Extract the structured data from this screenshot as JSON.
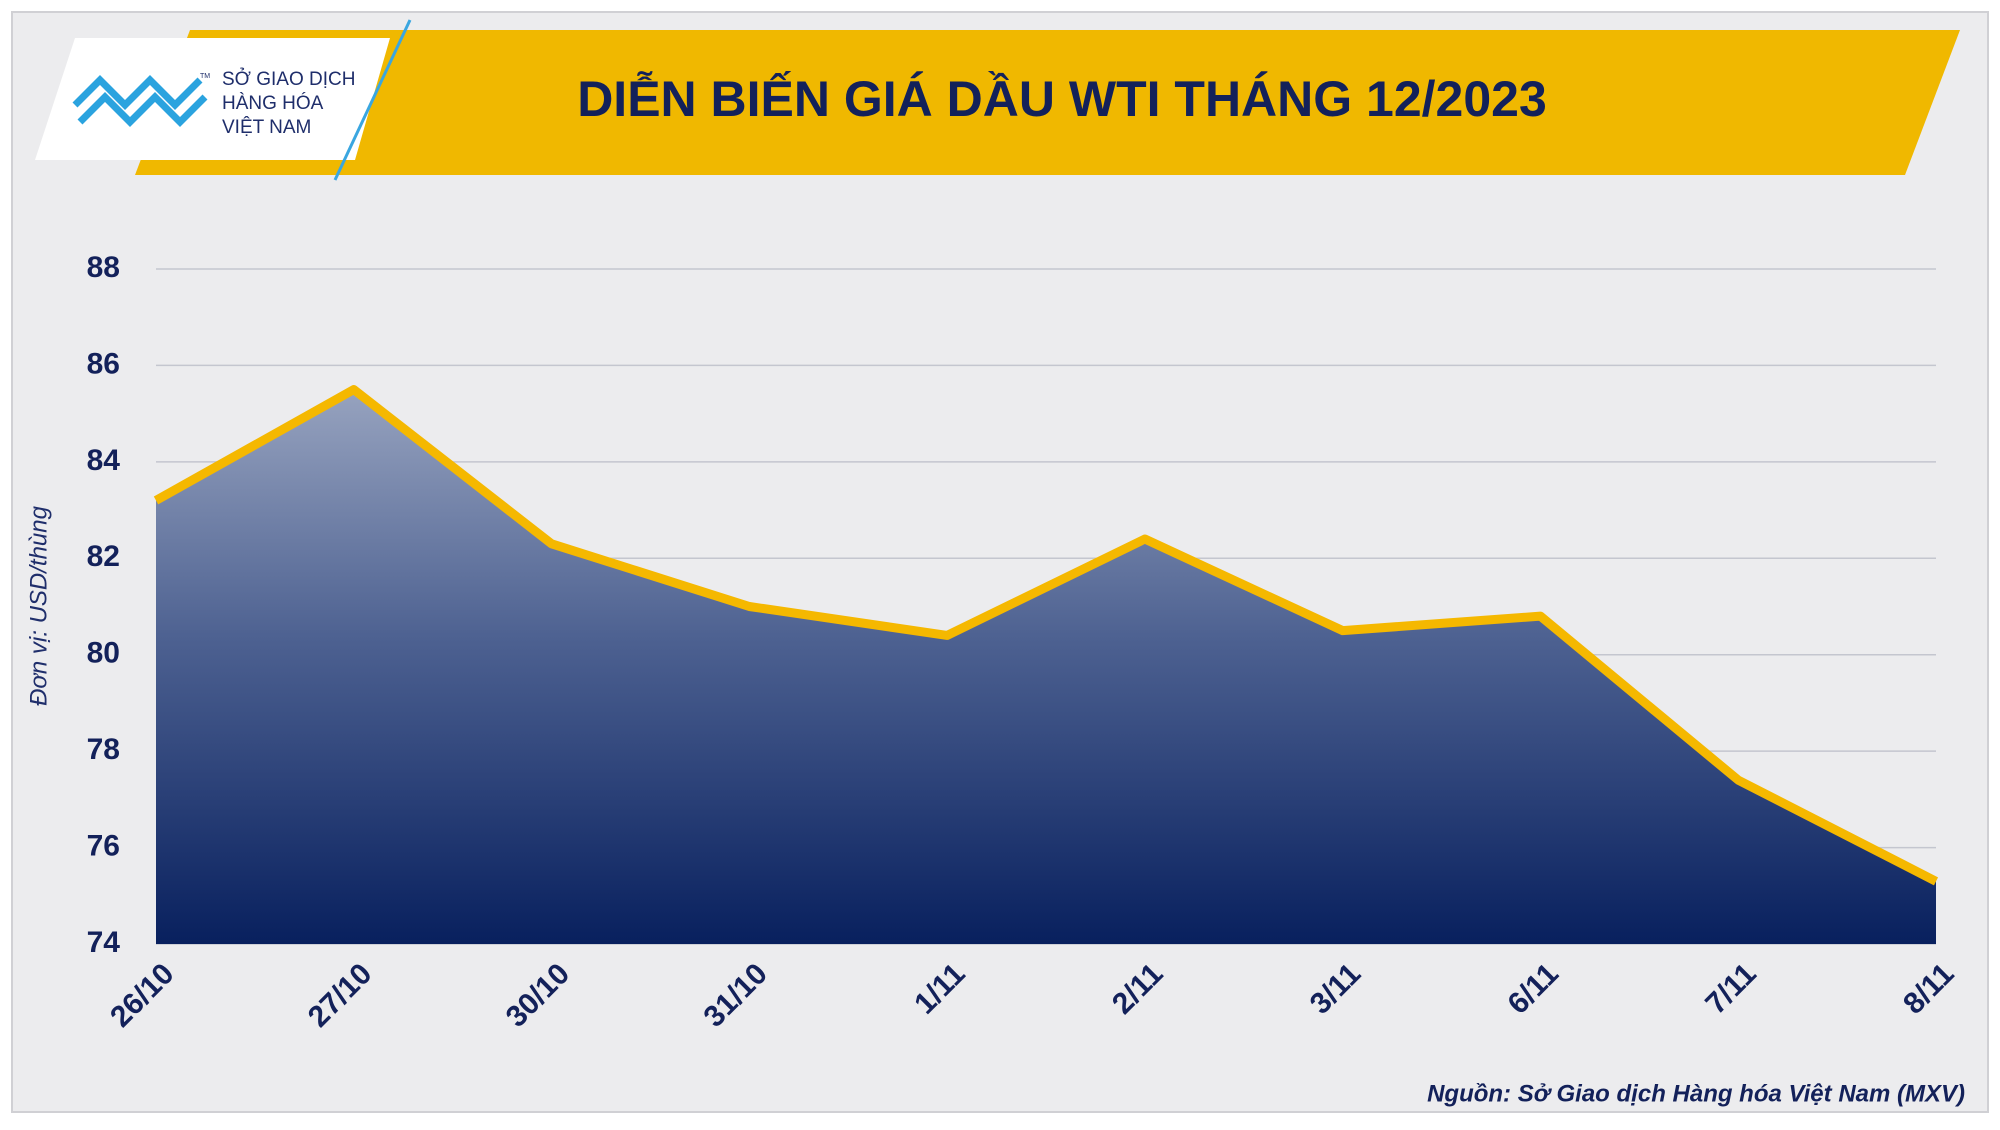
{
  "logo": {
    "line1": "SỞ GIAO DỊCH",
    "line2": "HÀNG HÓA",
    "line3": "VIỆT NAM",
    "mark": "TM"
  },
  "chart_data": {
    "type": "area",
    "title": "DIỄN BIẾN GIÁ DẦU WTI THÁNG 12/2023",
    "y_label": "Đơn vị: USD/thùng",
    "source": "Nguồn: Sở Giao dịch Hàng hóa Việt Nam (MXV)",
    "categories": [
      "26/10",
      "27/10",
      "30/10",
      "31/10",
      "1/11",
      "2/11",
      "3/11",
      "6/11",
      "7/11",
      "8/11"
    ],
    "values": [
      83.2,
      85.5,
      82.3,
      81.0,
      80.4,
      82.4,
      80.5,
      80.8,
      77.4,
      75.3
    ],
    "color": "#f5b800",
    "ylim": [
      74,
      88
    ],
    "yticks": [
      74,
      76,
      78,
      80,
      82,
      84,
      86,
      88
    ],
    "grid": true
  }
}
